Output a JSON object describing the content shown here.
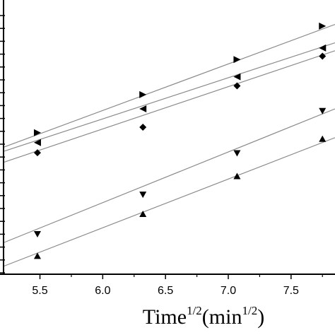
{
  "chart_data": {
    "type": "scatter",
    "title": "",
    "xlabel": {
      "base": "Time",
      "sup": "1/2",
      "unit_open": "(min",
      "unit_sup": "1/2",
      "unit_close": ")"
    },
    "ylabel": "",
    "xlim": [
      5.21,
      7.85
    ],
    "ylim": [
      0,
      1
    ],
    "x_ticks": [
      "5.5",
      "6.0",
      "6.5",
      "7.0",
      "7.5"
    ],
    "grid": false,
    "fit_lines": true,
    "series": [
      {
        "marker": "triangle-right",
        "points": [
          [
            5.48,
            0.516
          ],
          [
            6.32,
            0.655
          ],
          [
            7.07,
            0.783
          ],
          [
            7.75,
            0.905
          ]
        ],
        "fit": [
          [
            5.21,
            0.463
          ],
          [
            7.85,
            0.911
          ]
        ]
      },
      {
        "marker": "triangle-left",
        "points": [
          [
            5.48,
            0.48
          ],
          [
            6.32,
            0.603
          ],
          [
            7.07,
            0.72
          ],
          [
            7.75,
            0.825
          ]
        ],
        "fit": [
          [
            5.21,
            0.448
          ],
          [
            7.85,
            0.844
          ]
        ]
      },
      {
        "marker": "diamond",
        "points": [
          [
            5.48,
            0.443
          ],
          [
            6.32,
            0.536
          ],
          [
            7.07,
            0.687
          ],
          [
            7.75,
            0.795
          ]
        ],
        "fit": [
          [
            5.21,
            0.408
          ],
          [
            7.85,
            0.815
          ]
        ]
      },
      {
        "marker": "triangle-down",
        "points": [
          [
            5.48,
            0.147
          ],
          [
            6.32,
            0.291
          ],
          [
            7.07,
            0.442
          ],
          [
            7.75,
            0.596
          ]
        ],
        "fit": [
          [
            5.21,
            0.115
          ],
          [
            7.85,
            0.603
          ]
        ]
      },
      {
        "marker": "triangle-up",
        "points": [
          [
            5.48,
            0.066
          ],
          [
            6.32,
            0.219
          ],
          [
            7.07,
            0.357
          ],
          [
            7.75,
            0.493
          ]
        ],
        "fit": [
          [
            5.21,
            0.029
          ],
          [
            7.85,
            0.498
          ]
        ]
      }
    ]
  }
}
